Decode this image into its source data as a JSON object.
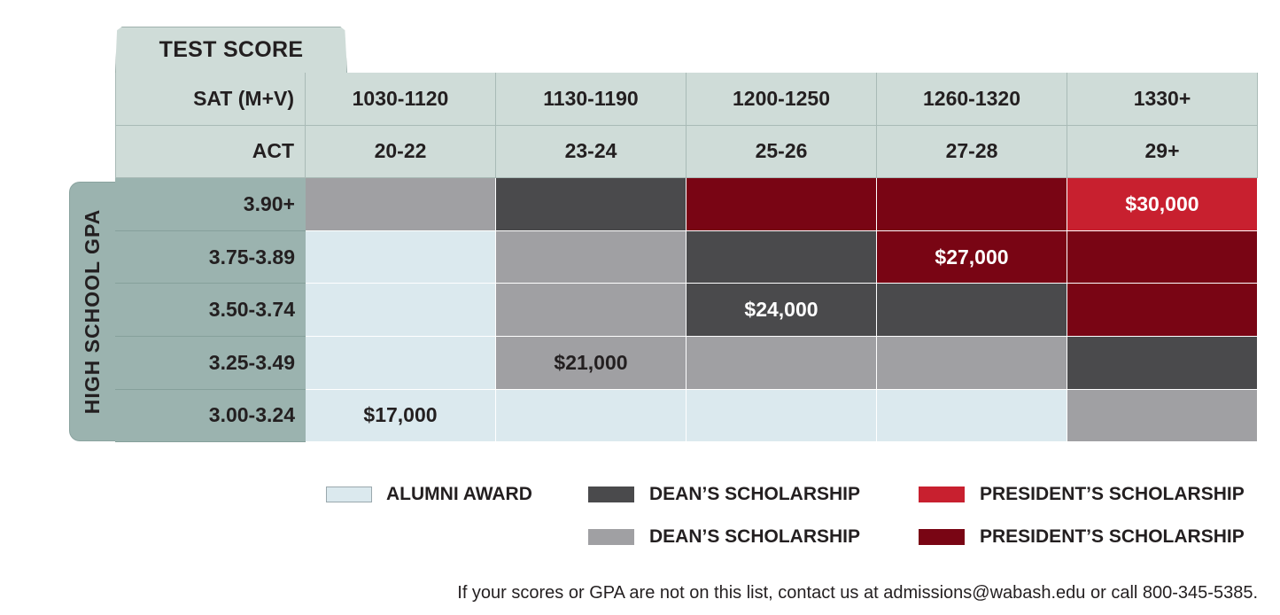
{
  "chart_data": {
    "type": "table",
    "column_group_title": "TEST SCORE",
    "row_group_title": "HIGH SCHOOL GPA",
    "header_rows": [
      {
        "label": "SAT (M+V)",
        "values": [
          "1030-1120",
          "1130-1190",
          "1200-1250",
          "1260-1320",
          "1330+"
        ]
      },
      {
        "label": "ACT",
        "values": [
          "20-22",
          "23-24",
          "25-26",
          "27-28",
          "29+"
        ]
      }
    ],
    "rows": [
      {
        "label": "3.90+",
        "cells": [
          {
            "award": "deans_light",
            "text": ""
          },
          {
            "award": "deans_dark",
            "text": ""
          },
          {
            "award": "presidents_dark",
            "text": ""
          },
          {
            "award": "presidents_dark",
            "text": ""
          },
          {
            "award": "presidents_bright",
            "text": "$30,000"
          }
        ]
      },
      {
        "label": "3.75-3.89",
        "cells": [
          {
            "award": "alumni",
            "text": ""
          },
          {
            "award": "deans_light",
            "text": ""
          },
          {
            "award": "deans_dark",
            "text": ""
          },
          {
            "award": "presidents_dark",
            "text": "$27,000"
          },
          {
            "award": "presidents_dark",
            "text": ""
          }
        ]
      },
      {
        "label": "3.50-3.74",
        "cells": [
          {
            "award": "alumni",
            "text": ""
          },
          {
            "award": "deans_light",
            "text": ""
          },
          {
            "award": "deans_dark",
            "text": "$24,000"
          },
          {
            "award": "deans_dark",
            "text": ""
          },
          {
            "award": "presidents_dark",
            "text": ""
          }
        ]
      },
      {
        "label": "3.25-3.49",
        "cells": [
          {
            "award": "alumni",
            "text": ""
          },
          {
            "award": "deans_light",
            "text": "$21,000"
          },
          {
            "award": "deans_light",
            "text": ""
          },
          {
            "award": "deans_light",
            "text": ""
          },
          {
            "award": "deans_dark",
            "text": ""
          }
        ]
      },
      {
        "label": "3.00-3.24",
        "cells": [
          {
            "award": "alumni",
            "text": "$17,000"
          },
          {
            "award": "alumni",
            "text": ""
          },
          {
            "award": "alumni",
            "text": ""
          },
          {
            "award": "alumni",
            "text": ""
          },
          {
            "award": "deans_light",
            "text": ""
          }
        ]
      }
    ],
    "colors": {
      "alumni": "#dbe9ee",
      "deans_light": "#a0a0a3",
      "deans_dark": "#4a4a4c",
      "presidents_bright": "#c8202f",
      "presidents_dark": "#790514"
    },
    "text_colors": {
      "alumni": "#231f20",
      "deans_light": "#231f20",
      "deans_dark": "#ffffff",
      "presidents_bright": "#ffffff",
      "presidents_dark": "#ffffff"
    },
    "legend": [
      {
        "award": "alumni",
        "label": "ALUMNI AWARD"
      },
      {
        "award": "deans_dark",
        "label": "DEAN’S SCHOLARSHIP"
      },
      {
        "award": "deans_light",
        "label": "DEAN’S SCHOLARSHIP"
      },
      {
        "award": "presidents_bright",
        "label": "PRESIDENT’S SCHOLARSHIP"
      },
      {
        "award": "presidents_dark",
        "label": "PRESIDENT’S SCHOLARSHIP"
      }
    ]
  },
  "footnote": "If your scores or GPA are not on this list, contact us at admissions@wabash.edu or call 800-345-5385."
}
